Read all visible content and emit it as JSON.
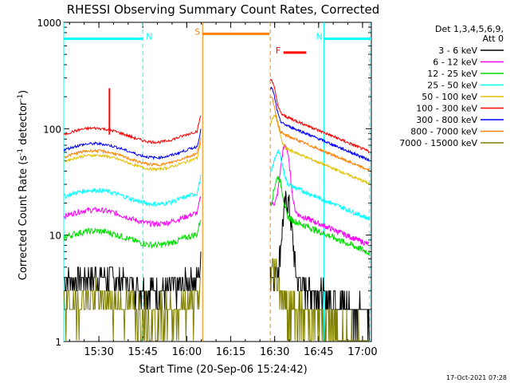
{
  "chart_data": {
    "type": "line",
    "title": "RHESSI Observing Summary Count Rates, Corrected",
    "xlabel": "Start Time (20-Sep-06 15:24:42)",
    "ylabel_main": "Corrected Count Rate (s",
    "ylabel_sup1": "-1",
    "ylabel_mid": " detector",
    "ylabel_sup2": "-1",
    "ylabel_end": ")",
    "yscale": "log",
    "ylim": [
      1,
      1000
    ],
    "xlim_minutes": [
      15.3,
      17.05
    ],
    "y_ticks": [
      {
        "value": 1,
        "label": "1"
      },
      {
        "value": 10,
        "label": "10"
      },
      {
        "value": 100,
        "label": "100"
      },
      {
        "value": 1000,
        "label": "1000"
      }
    ],
    "x_ticks": [
      {
        "value": 15.5,
        "label": "15:30"
      },
      {
        "value": 15.75,
        "label": "15:45"
      },
      {
        "value": 16.0,
        "label": "16:00"
      },
      {
        "value": 16.25,
        "label": "16:15"
      },
      {
        "value": 16.5,
        "label": "16:30"
      },
      {
        "value": 16.75,
        "label": "16:45"
      },
      {
        "value": 17.0,
        "label": "17:00"
      }
    ],
    "legend_header": [
      "Det 1,3,4,5,6,9,",
      "Att 0"
    ],
    "series": [
      {
        "name": "3 - 6 keV",
        "color": "#000000",
        "pre": 3.6,
        "post": 3.6,
        "noise": 0.3,
        "peak": 22,
        "peak_t": 16.57
      },
      {
        "name": "6 - 12 keV",
        "color": "#ff00ff",
        "pre": 15,
        "post": 16,
        "noise": 0.06,
        "peak": 65,
        "peak_t": 16.56
      },
      {
        "name": "12 - 25 keV",
        "color": "#00e000",
        "pre": 9.5,
        "post": 13.5,
        "noise": 0.07,
        "peak": 24,
        "peak_t": 16.52
      },
      {
        "name": "25 - 50 keV",
        "color": "#00ffff",
        "pre": 23,
        "post": 28,
        "noise": 0.05,
        "peak": 35,
        "peak_t": 16.52
      },
      {
        "name": "50 - 100 keV",
        "color": "#e0c000",
        "pre": 49,
        "post": 60,
        "noise": 0.03,
        "peak": 75,
        "peak_t": 16.5
      },
      {
        "name": "100 - 300 keV",
        "color": "#ff0000",
        "pre": 88,
        "post": 120,
        "noise": 0.03,
        "peak": 175,
        "peak_t": 16.48
      },
      {
        "name": "300 - 800 keV",
        "color": "#0000ff",
        "pre": 63,
        "post": 100,
        "noise": 0.03,
        "peak": 145,
        "peak_t": 16.48
      },
      {
        "name": "800 - 7000 keV",
        "color": "#ff8000",
        "pre": 54,
        "post": 80,
        "noise": 0.03,
        "peak": 120,
        "peak_t": 16.48
      },
      {
        "name": "7000 - 15000 keV",
        "color": "#808000",
        "pre": 2.2,
        "post": 2.0,
        "noise": 0.4,
        "peak": 3,
        "peak_t": 16.5
      }
    ],
    "data_gaps": [
      [
        16.08,
        16.475
      ]
    ],
    "annotations": [
      {
        "label": "N",
        "color": "#00ffff",
        "span": [
          15.3,
          15.75
        ],
        "y": 700
      },
      {
        "label": "N",
        "color": "#00ffff",
        "span": [
          16.78,
          17.05
        ],
        "y": 700
      },
      {
        "label": "S",
        "color": "#ff8000",
        "span": [
          16.09,
          16.47
        ],
        "y": 780
      },
      {
        "label": "F",
        "color": "#ff0000",
        "span": [
          16.55,
          16.68
        ],
        "y": 520
      }
    ],
    "vlines": [
      {
        "t": 15.3,
        "color": "#00ffff",
        "dashed": false
      },
      {
        "t": 15.75,
        "color": "#00ffff",
        "dashed": true
      },
      {
        "t": 16.09,
        "color": "#ff8000",
        "dashed": false
      },
      {
        "t": 16.475,
        "color": "#ff8000",
        "dashed": true
      },
      {
        "t": 16.78,
        "color": "#00ffff",
        "dashed": false
      },
      {
        "t": 17.04,
        "color": "#00ffff",
        "dashed": true
      }
    ],
    "spike": {
      "t": 15.56,
      "value": 240,
      "color": "#ff0000"
    }
  },
  "footer_date": "17-Oct-2021 07:28"
}
